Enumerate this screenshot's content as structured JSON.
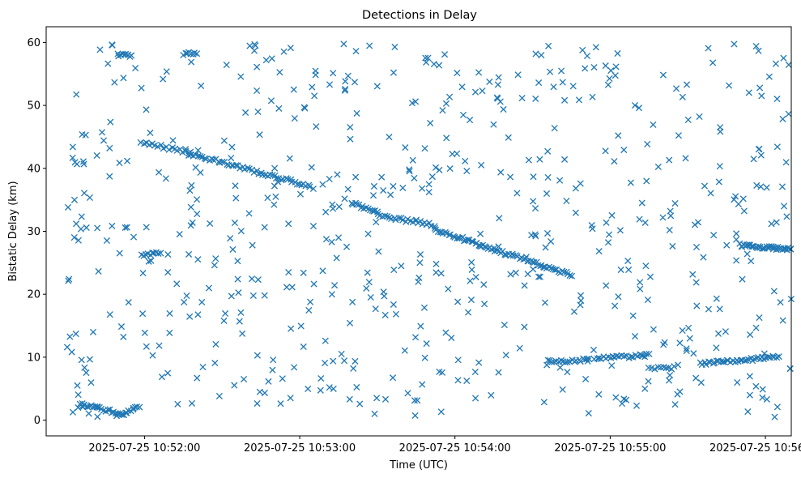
{
  "chart_data": {
    "type": "scatter",
    "title": "Detections in Delay",
    "xlabel": "Time (UTC)",
    "ylabel": "Bistatic Delay (km)",
    "x_type": "time",
    "xlim": [
      "2025-07-25 10:51:22",
      "2025-07-25 10:56:10"
    ],
    "ylim": [
      -2.5,
      62.5
    ],
    "x_ticks": [
      "2025-07-25 10:52:00",
      "2025-07-25 10:53:00",
      "2025-07-25 10:54:00",
      "2025-07-25 10:55:00",
      "2025-07-25 10:56:00"
    ],
    "y_ticks": [
      0,
      10,
      20,
      30,
      40,
      50,
      60
    ],
    "marker": "x",
    "color": "#1f77b4",
    "grid": false,
    "legend": "none",
    "series": [
      {
        "tracks": [
          {
            "start": "2025-07-25 10:51:35",
            "end": "2025-07-25 10:51:42",
            "y0": 2.5,
            "y1": 2.0,
            "n": 12
          },
          {
            "start": "2025-07-25 10:51:42",
            "end": "2025-07-25 10:51:52",
            "y0": 2.0,
            "y1": 0.8,
            "n": 14
          },
          {
            "start": "2025-07-25 10:51:52",
            "end": "2025-07-25 10:51:58",
            "y0": 0.8,
            "y1": 2.2,
            "n": 10
          },
          {
            "start": "2025-07-25 10:51:50",
            "end": "2025-07-25 10:51:55",
            "y0": 58.0,
            "y1": 58.0,
            "n": 8
          },
          {
            "start": "2025-07-25 10:52:15",
            "end": "2025-07-25 10:52:20",
            "y0": 58.2,
            "y1": 58.3,
            "n": 8
          },
          {
            "start": "2025-07-25 10:51:59",
            "end": "2025-07-25 10:52:06",
            "y0": 26.3,
            "y1": 26.5,
            "n": 10
          },
          {
            "start": "2025-07-25 10:52:00",
            "end": "2025-07-25 10:52:18",
            "y0": 44.0,
            "y1": 42.5,
            "n": 18
          },
          {
            "start": "2025-07-25 10:52:18",
            "end": "2025-07-25 10:53:05",
            "y0": 42.3,
            "y1": 37.0,
            "n": 55
          },
          {
            "start": "2025-07-25 10:53:20",
            "end": "2025-07-25 10:53:30",
            "y0": 34.5,
            "y1": 33.0,
            "n": 15
          },
          {
            "start": "2025-07-25 10:53:30",
            "end": "2025-07-25 10:53:52",
            "y0": 32.5,
            "y1": 31.0,
            "n": 25
          },
          {
            "start": "2025-07-25 10:53:52",
            "end": "2025-07-25 10:54:45",
            "y0": 30.3,
            "y1": 23.0,
            "n": 75
          },
          {
            "start": "2025-07-25 10:54:36",
            "end": "2025-07-25 10:54:52",
            "y0": 9.3,
            "y1": 9.6,
            "n": 20
          },
          {
            "start": "2025-07-25 10:54:54",
            "end": "2025-07-25 10:55:15",
            "y0": 9.8,
            "y1": 10.3,
            "n": 25
          },
          {
            "start": "2025-07-25 10:55:15",
            "end": "2025-07-25 10:55:25",
            "y0": 8.3,
            "y1": 8.3,
            "n": 10
          },
          {
            "start": "2025-07-25 10:55:35",
            "end": "2025-07-25 10:56:05",
            "y0": 9.0,
            "y1": 10.0,
            "n": 40
          },
          {
            "start": "2025-07-25 10:55:50",
            "end": "2025-07-25 10:56:10",
            "y0": 27.8,
            "y1": 27.1,
            "n": 40
          }
        ],
        "clutter": {
          "count": 620,
          "x_range": [
            "2025-07-25 10:51:22",
            "2025-07-25 10:56:10"
          ],
          "y_range": [
            0.5,
            60
          ],
          "seed": 11
        }
      }
    ]
  }
}
